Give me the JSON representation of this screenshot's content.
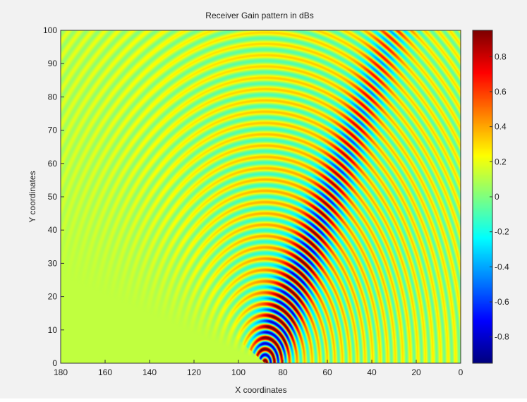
{
  "chart_data": {
    "type": "heatmap",
    "title": "Receiver Gain pattern in dBs",
    "xlabel": "X coordinates",
    "ylabel": "Y coordinates",
    "xlim": [
      180,
      0
    ],
    "ylim": [
      0,
      100
    ],
    "x_reversed": true,
    "x_ticks": [
      180,
      160,
      140,
      120,
      100,
      80,
      60,
      40,
      20,
      0
    ],
    "y_ticks": [
      0,
      10,
      20,
      30,
      40,
      50,
      60,
      70,
      80,
      90,
      100
    ],
    "colorbar": {
      "colormap": "jet",
      "range": [
        -0.95,
        0.95
      ],
      "ticks": [
        -0.8,
        -0.6,
        -0.4,
        -0.2,
        0,
        0.2,
        0.4,
        0.6,
        0.8
      ]
    },
    "pattern": {
      "source": [
        88,
        0
      ],
      "beam_direction": [
        30,
        100
      ],
      "description": "concentric ring interference pattern centred near x=88, y=0 with a strong diagonal main lobe toward the upper right"
    },
    "background_value": 0.12
  }
}
